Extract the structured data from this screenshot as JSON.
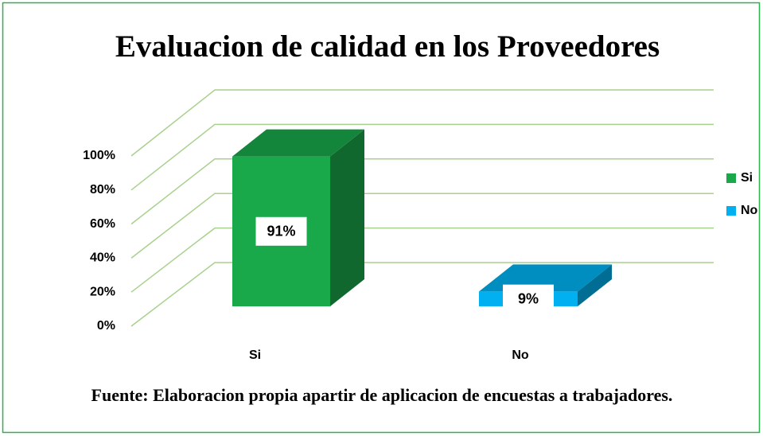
{
  "chart_data": {
    "type": "bar3d",
    "title": "Evaluacion de calidad en los Proveedores",
    "categories": [
      "Si",
      "No"
    ],
    "values": [
      91,
      9
    ],
    "value_labels": [
      "91%",
      "9%"
    ],
    "colors": [
      "#19a84a",
      "#00b0f0"
    ],
    "ylim": [
      0,
      100
    ],
    "yticks": [
      {
        "value": 0,
        "label": "0%"
      },
      {
        "value": 20,
        "label": "20%"
      },
      {
        "value": 40,
        "label": "40%"
      },
      {
        "value": 60,
        "label": "60%"
      },
      {
        "value": 80,
        "label": "80%"
      },
      {
        "value": 100,
        "label": "100%"
      }
    ],
    "grid": true,
    "legend": "right",
    "caption": "Fuente: Elaboracion propia apartir de aplicacion de encuestas a trabajadores."
  }
}
